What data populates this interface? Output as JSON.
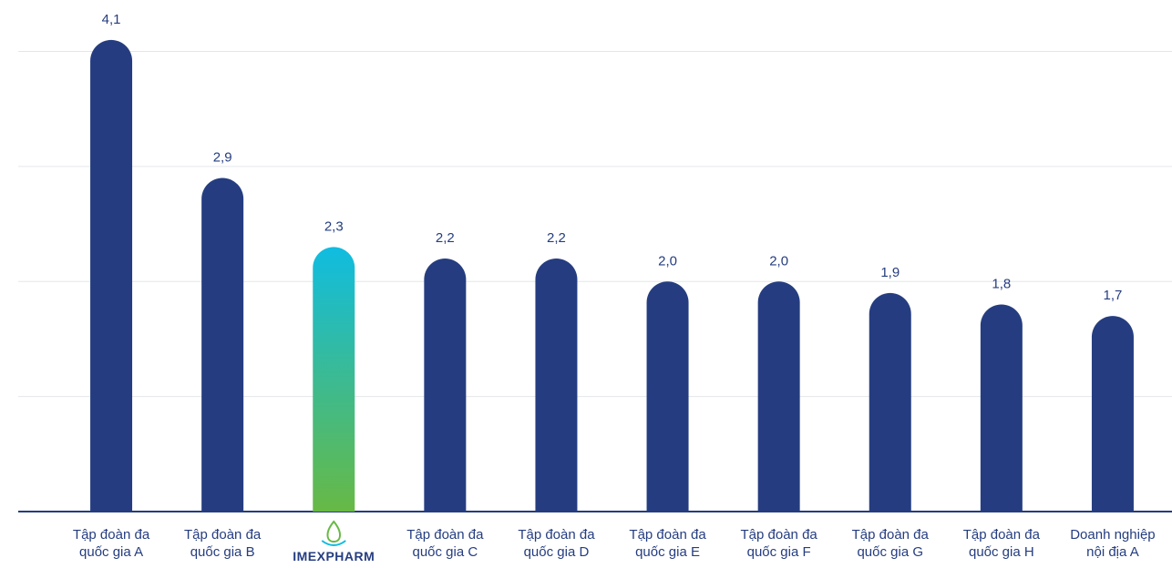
{
  "chart_data": {
    "type": "bar",
    "categories": [
      "Tập đoàn đa quốc gia A",
      "Tập đoàn đa quốc gia B",
      "IMEXPHARM",
      "Tập đoàn đa quốc gia C",
      "Tập đoàn đa quốc gia D",
      "Tập đoàn đa quốc gia E",
      "Tập đoàn đa quốc gia F",
      "Tập đoàn đa quốc gia G",
      "Tập đoàn đa quốc gia H",
      "Doanh nghiệp nội địa A"
    ],
    "values": [
      4.1,
      2.9,
      2.3,
      2.2,
      2.2,
      2.0,
      2.0,
      1.9,
      1.8,
      1.7
    ],
    "value_labels": [
      "4,1",
      "2,9",
      "2,3",
      "2,2",
      "2,2",
      "2,0",
      "2,0",
      "1,9",
      "1,8",
      "1,7"
    ],
    "colors": [
      "#253d80",
      "#253d80",
      [
        "#10bce0",
        "#67b945"
      ],
      "#253d80",
      "#253d80",
      "#253d80",
      "#253d80",
      "#253d80",
      "#253d80",
      "#253d80"
    ],
    "ylim": [
      0,
      4.4
    ],
    "yticks": [
      0,
      1,
      2,
      3,
      4
    ],
    "grid": true
  }
}
